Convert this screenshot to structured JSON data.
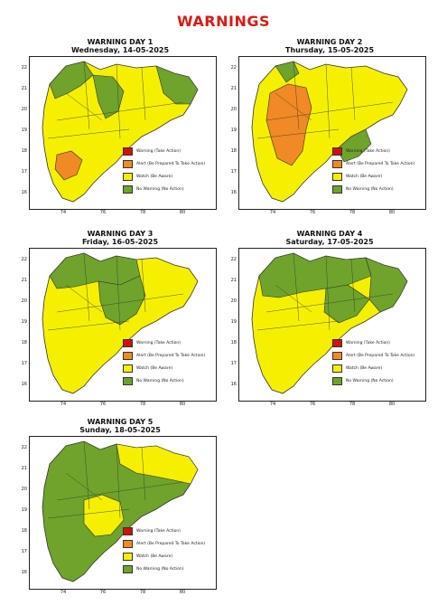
{
  "title": "WARNINGS",
  "colors": {
    "warning": "#d40f0f",
    "alert": "#f08a24",
    "watch": "#f5f000",
    "no_warning": "#6fa32b",
    "border": "#333333"
  },
  "legend": [
    {
      "key": "warning",
      "label": "Warning (Take Action)"
    },
    {
      "key": "alert",
      "label": "Alert (Be Prepared To Take Action)"
    },
    {
      "key": "watch",
      "label": "Watch (Be Aware)"
    },
    {
      "key": "no_warning",
      "label": "No Warning (No Action)"
    }
  ],
  "axes": {
    "y_ticks": [
      "22",
      "21",
      "20",
      "19",
      "18",
      "17",
      "16"
    ],
    "x_ticks": [
      "74",
      "76",
      "78",
      "80"
    ]
  },
  "days": [
    {
      "heading": "WARNING DAY 1",
      "date": "Wednesday, 14-05-2025",
      "dominant": "watch",
      "zones": [
        {
          "level": "no_warning",
          "area": "north-west"
        },
        {
          "level": "no_warning",
          "area": "central"
        },
        {
          "level": "no_warning",
          "area": "east"
        },
        {
          "level": "alert",
          "area": "south-west"
        }
      ]
    },
    {
      "heading": "WARNING DAY 2",
      "date": "Thursday, 15-05-2025",
      "dominant": "watch",
      "zones": [
        {
          "level": "alert",
          "area": "west-central"
        },
        {
          "level": "no_warning",
          "area": "south-east"
        },
        {
          "level": "no_warning",
          "area": "north-west"
        }
      ]
    },
    {
      "heading": "WARNING DAY 3",
      "date": "Friday, 16-05-2025",
      "dominant": "watch",
      "zones": [
        {
          "level": "no_warning",
          "area": "north"
        },
        {
          "level": "no_warning",
          "area": "central"
        }
      ]
    },
    {
      "heading": "WARNING DAY 4",
      "date": "Saturday, 17-05-2025",
      "dominant": "watch",
      "zones": [
        {
          "level": "no_warning",
          "area": "north"
        },
        {
          "level": "no_warning",
          "area": "east"
        },
        {
          "level": "no_warning",
          "area": "central"
        }
      ]
    },
    {
      "heading": "WARNING DAY 5",
      "date": "Sunday, 18-05-2025",
      "dominant": "no_warning",
      "zones": [
        {
          "level": "watch",
          "area": "north-east"
        },
        {
          "level": "watch",
          "area": "south-central"
        }
      ]
    }
  ]
}
